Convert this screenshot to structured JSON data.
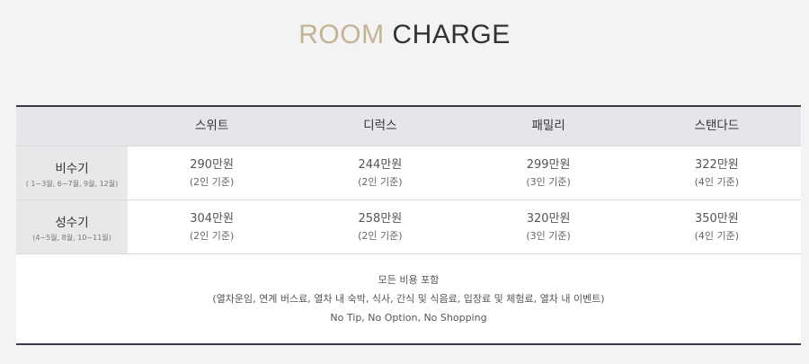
{
  "title": {
    "part1": "ROOM",
    "part2": "CHARGE"
  },
  "table": {
    "headers": [
      "스위트",
      "디럭스",
      "패밀리",
      "스탠다드"
    ],
    "rows": [
      {
        "season": "비수기",
        "months": "( 1~3월, 6~7월, 9월, 12월)",
        "cells": [
          {
            "price": "290만원",
            "basis": "(2인 기준)"
          },
          {
            "price": "244만원",
            "basis": "(2인 기준)"
          },
          {
            "price": "299만원",
            "basis": "(3인 기준)"
          },
          {
            "price": "322만원",
            "basis": "(4인 기준)"
          }
        ]
      },
      {
        "season": "성수기",
        "months": "(4~5월, 8월, 10~11월)",
        "cells": [
          {
            "price": "304만원",
            "basis": "(2인 기준)"
          },
          {
            "price": "258만원",
            "basis": "(2인 기준)"
          },
          {
            "price": "320만원",
            "basis": "(3인 기준)"
          },
          {
            "price": "350만원",
            "basis": "(4인 기준)"
          }
        ]
      }
    ],
    "footer": {
      "line1": "모든 비용 포함",
      "line2": "(열차운임, 연계 버스료, 열차 내 숙박, 식사, 간식 및 식음료, 입장료 및 체험료, 열차 내 이벤트)",
      "line3": "No Tip, No Option, No Shopping"
    }
  }
}
